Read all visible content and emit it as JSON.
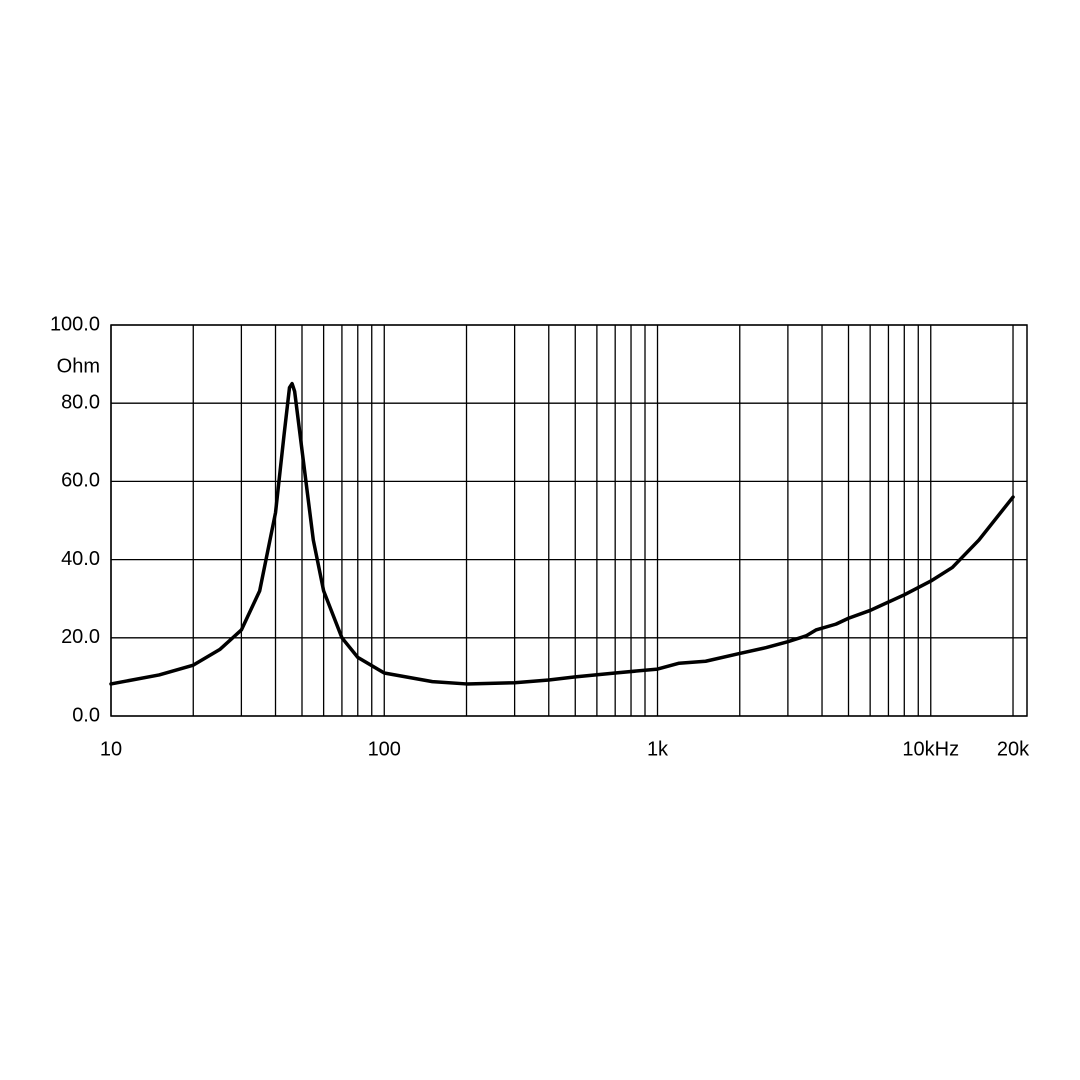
{
  "chart_data": {
    "type": "line",
    "y_label": "Ohm",
    "x_scale": "log",
    "x": [
      10,
      15,
      20,
      25,
      30,
      35,
      40,
      43,
      45,
      46,
      47,
      50,
      55,
      60,
      70,
      80,
      100,
      150,
      200,
      300,
      400,
      500,
      700,
      1000,
      1200,
      1500,
      2000,
      2500,
      3000,
      3500,
      3800,
      4500,
      5000,
      6000,
      8000,
      10000,
      12000,
      15000,
      20000
    ],
    "series": [
      {
        "color": "#000000",
        "values": [
          8.2,
          10.5,
          13,
          17,
          22,
          32,
          52,
          72,
          84,
          85,
          83,
          68,
          45,
          32,
          20,
          15,
          11,
          8.8,
          8.2,
          8.5,
          9.2,
          10,
          11,
          12,
          13.5,
          14,
          16,
          17.5,
          19,
          20.5,
          22,
          23.5,
          25,
          27,
          31,
          34.5,
          38,
          45,
          56
        ]
      }
    ],
    "xlim": [
      10,
      22500
    ],
    "ylim": [
      0,
      100
    ],
    "xticks": [
      10,
      100,
      {
        "value": 1000,
        "label": "1k"
      },
      {
        "value": 10000,
        "label": "10kHz"
      },
      {
        "value": 20000,
        "label": "20k"
      }
    ],
    "x_minor_grid": [
      20,
      30,
      40,
      50,
      60,
      70,
      80,
      90,
      200,
      300,
      400,
      500,
      600,
      700,
      800,
      900,
      2000,
      3000,
      4000,
      5000,
      6000,
      7000,
      8000,
      9000
    ],
    "yticks": [
      {
        "value": 0,
        "label": "0.0"
      },
      {
        "value": 20,
        "label": "20.0"
      },
      {
        "value": 40,
        "label": "40.0"
      },
      {
        "value": 60,
        "label": "60.0"
      },
      {
        "value": 80,
        "label": "80.0"
      },
      {
        "value": 100,
        "label": "100.0"
      }
    ],
    "grid": true
  }
}
